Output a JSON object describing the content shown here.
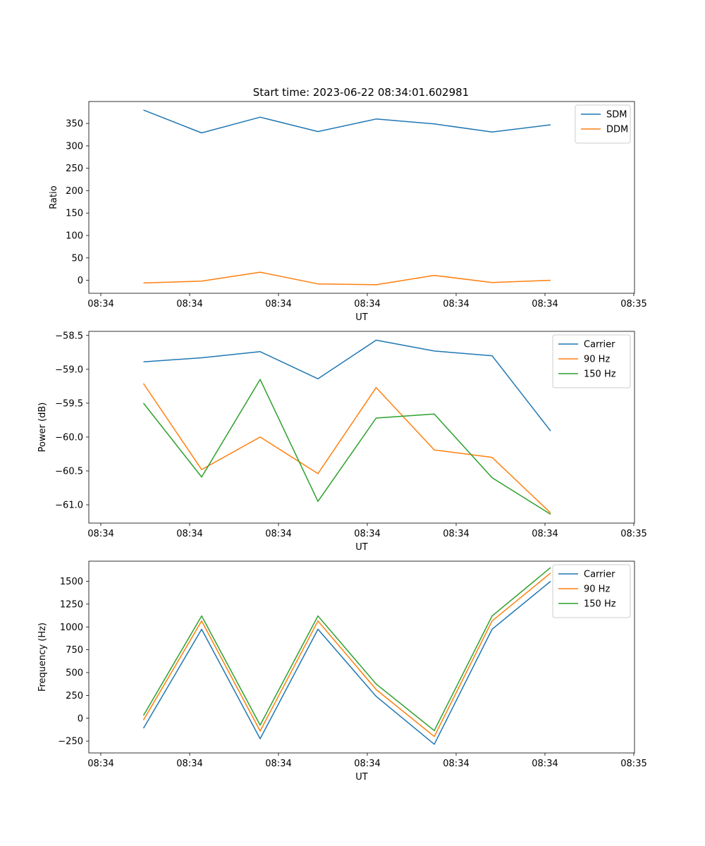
{
  "figure": {
    "title": "Start time: 2023-06-22 08:34:01.602981"
  },
  "chart_data": [
    {
      "type": "line",
      "xlabel": "UT",
      "ylabel": "Ratio",
      "x_tick_labels": [
        "08:34",
        "08:34",
        "08:34",
        "08:34",
        "08:34",
        "08:34",
        "08:35"
      ],
      "yticks": [
        0,
        50,
        100,
        150,
        200,
        250,
        300,
        350
      ],
      "ytick_labels": [
        "0",
        "50",
        "100",
        "150",
        "200",
        "250",
        "300",
        "350"
      ],
      "ylim": [
        -29,
        399
      ],
      "legend_position": "upper-right",
      "series": [
        {
          "name": "SDM",
          "color": "#1f77b4",
          "values": [
            380,
            329,
            364,
            332,
            360,
            349,
            331,
            347
          ]
        },
        {
          "name": "DDM",
          "color": "#ff7f0e",
          "values": [
            -6,
            -2,
            18,
            -8,
            -10,
            11,
            -5,
            0
          ]
        }
      ]
    },
    {
      "type": "line",
      "xlabel": "UT",
      "ylabel": "Power (dB)",
      "x_tick_labels": [
        "08:34",
        "08:34",
        "08:34",
        "08:34",
        "08:34",
        "08:34",
        "08:35"
      ],
      "yticks": [
        -61.0,
        -60.5,
        -60.0,
        -59.5,
        -59.0,
        -58.5
      ],
      "ytick_labels": [
        "−61.0",
        "−60.5",
        "−60.0",
        "−59.5",
        "−59.0",
        "−58.5"
      ],
      "ylim": [
        -61.27,
        -58.44
      ],
      "legend_position": "upper-right",
      "series": [
        {
          "name": "Carrier",
          "color": "#1f77b4",
          "values": [
            -58.89,
            -58.83,
            -58.74,
            -59.14,
            -58.57,
            -58.73,
            -58.8,
            -59.91
          ]
        },
        {
          "name": "90 Hz",
          "color": "#ff7f0e",
          "values": [
            -59.21,
            -60.48,
            -60.0,
            -60.54,
            -59.27,
            -60.19,
            -60.3,
            -61.12
          ]
        },
        {
          "name": "150 Hz",
          "color": "#2ca02c",
          "values": [
            -59.5,
            -60.59,
            -59.15,
            -60.95,
            -59.72,
            -59.66,
            -60.6,
            -61.14
          ]
        }
      ]
    },
    {
      "type": "line",
      "xlabel": "UT",
      "ylabel": "Frequency (Hz)",
      "x_tick_labels": [
        "08:34",
        "08:34",
        "08:34",
        "08:34",
        "08:34",
        "08:34",
        "08:35"
      ],
      "yticks": [
        -250,
        0,
        250,
        500,
        750,
        1000,
        1250,
        1500
      ],
      "ytick_labels": [
        "−250",
        "0",
        "250",
        "500",
        "750",
        "1000",
        "1250",
        "1500"
      ],
      "ylim": [
        -380,
        1720
      ],
      "legend_position": "upper-right",
      "series": [
        {
          "name": "Carrier",
          "color": "#1f77b4",
          "values": [
            -110,
            975,
            -225,
            975,
            240,
            -285,
            975,
            1500
          ]
        },
        {
          "name": "90 Hz",
          "color": "#ff7f0e",
          "values": [
            -20,
            1065,
            -140,
            1065,
            315,
            -200,
            1065,
            1590
          ]
        },
        {
          "name": "150 Hz",
          "color": "#2ca02c",
          "values": [
            30,
            1120,
            -75,
            1120,
            375,
            -135,
            1120,
            1650
          ]
        }
      ]
    }
  ]
}
